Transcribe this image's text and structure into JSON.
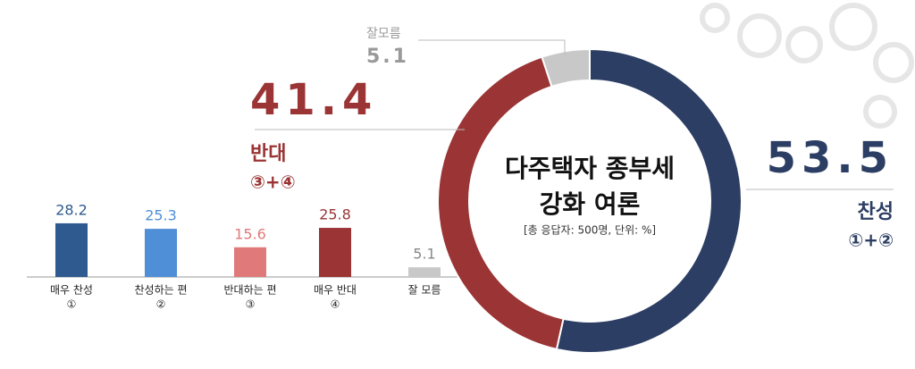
{
  "chart_data": [
    {
      "type": "bar",
      "categories": [
        "매우 찬성",
        "찬성하는 편",
        "반대하는 편",
        "매우 반대",
        "잘 모름"
      ],
      "sublabels": [
        "①",
        "②",
        "③",
        "④",
        null
      ],
      "values": [
        28.2,
        25.3,
        15.6,
        25.8,
        5.1
      ],
      "colors": [
        "#2f5a8f",
        "#4f8fd8",
        "#e07a7a",
        "#9b3434",
        "#c8c8c8"
      ]
    },
    {
      "type": "pie",
      "title": "다주택자 종부세 강화 여론",
      "subtitle": "[총 응답자: 500명, 단위: %]",
      "categories": [
        "찬성",
        "반대",
        "잘모름"
      ],
      "sublabels": [
        "①+②",
        "③+④",
        null
      ],
      "values": [
        53.5,
        41.4,
        5.1
      ],
      "colors": [
        "#2c3e63",
        "#9b3434",
        "#c8c8c8"
      ]
    }
  ]
}
